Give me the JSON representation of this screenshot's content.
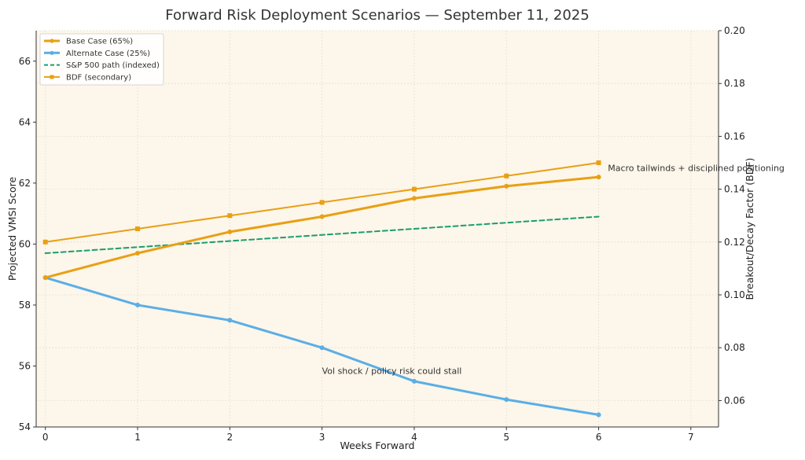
{
  "chart_data": {
    "type": "line",
    "title": "Forward Risk Deployment Scenarios — September 11, 2025",
    "xlabel": "Weeks Forward",
    "ylabel": "Projected VMSI Score",
    "y2label": "Breakout/Decay Factor (BDF)",
    "xlim": [
      -0.1,
      7.3
    ],
    "ylim": [
      54,
      67
    ],
    "y2lim": [
      0.05,
      0.2
    ],
    "x_ticks": [
      0,
      1,
      2,
      3,
      4,
      5,
      6,
      7
    ],
    "y_ticks": [
      54,
      56,
      58,
      60,
      62,
      64,
      66
    ],
    "y2_ticks": [
      "0.06",
      "0.08",
      "0.10",
      "0.12",
      "0.14",
      "0.16",
      "0.18",
      "0.20"
    ],
    "grid": true,
    "legend_position": "top-left",
    "background_color": "#fdf6ea",
    "series": [
      {
        "name": "Base Case (65%)",
        "axis": "left",
        "color": "#e8a014",
        "style": "solid",
        "marker": "circle",
        "width": 3,
        "x": [
          0,
          1,
          2,
          3,
          4,
          5,
          6
        ],
        "values": [
          58.9,
          59.7,
          60.4,
          60.9,
          61.5,
          61.9,
          62.2
        ]
      },
      {
        "name": "Alternate Case (25%)",
        "axis": "left",
        "color": "#5aaee6",
        "style": "solid",
        "marker": "circle",
        "width": 3,
        "x": [
          0,
          1,
          2,
          3,
          4,
          5,
          6
        ],
        "values": [
          58.9,
          58.0,
          57.5,
          56.6,
          55.5,
          54.9,
          54.4
        ]
      },
      {
        "name": "S&P 500 path (indexed)",
        "axis": "left",
        "color": "#1a9e6e",
        "style": "dashed",
        "marker": "none",
        "width": 2,
        "x": [
          0,
          1,
          2,
          3,
          4,
          5,
          6
        ],
        "values": [
          59.7,
          59.9,
          60.1,
          60.3,
          60.5,
          60.7,
          60.9
        ]
      },
      {
        "name": "BDF (secondary)",
        "axis": "right",
        "color": "#e8a014",
        "style": "solid",
        "marker": "square",
        "width": 2,
        "x": [
          0,
          1,
          2,
          3,
          4,
          5,
          6
        ],
        "values": [
          0.12,
          0.125,
          0.13,
          0.135,
          0.14,
          0.145,
          0.15
        ]
      }
    ],
    "annotations": [
      {
        "text": "Macro tailwinds + disciplined positioning",
        "x": 6.1,
        "y": 62.5
      },
      {
        "text": "Vol shock / policy risk could stall",
        "x": 3.0,
        "y": 55.85
      }
    ]
  }
}
